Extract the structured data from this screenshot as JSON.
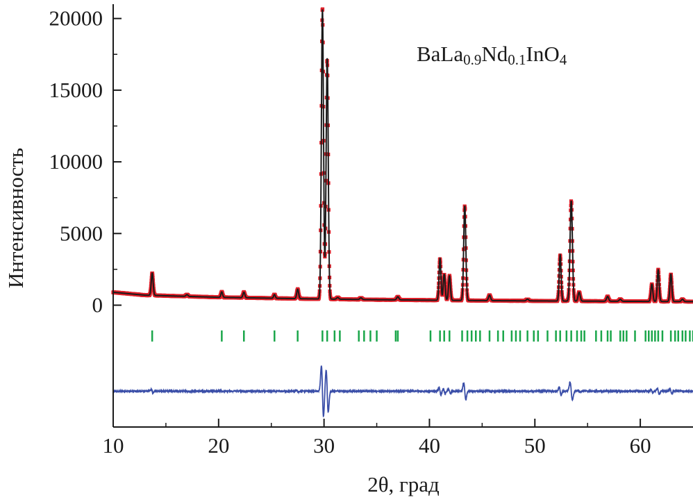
{
  "chart_data": {
    "type": "line",
    "title": "",
    "annotation": {
      "parts": [
        {
          "text": "BaLa",
          "sub": false
        },
        {
          "text": "0.9",
          "sub": true
        },
        {
          "text": "Nd",
          "sub": false
        },
        {
          "text": "0.1",
          "sub": true
        },
        {
          "text": "InO",
          "sub": false
        },
        {
          "text": "4",
          "sub": true
        }
      ]
    },
    "xlabel": "2θ, град",
    "ylabel": "Интенсивность",
    "xlim": [
      10,
      65
    ],
    "ylim": [
      -8500,
      21000
    ],
    "x_ticks": [
      10,
      20,
      30,
      40,
      50,
      60
    ],
    "y_ticks": [
      0,
      5000,
      10000,
      15000,
      20000
    ],
    "x_tick_labels": [
      "10",
      "20",
      "30",
      "40",
      "50",
      "60"
    ],
    "y_tick_labels": [
      "0",
      "5000",
      "10000",
      "15000",
      "20000"
    ],
    "background": {
      "x": [
        10,
        13,
        20,
        28,
        35,
        45,
        55,
        65
      ],
      "y": [
        900,
        700,
        550,
        450,
        380,
        320,
        280,
        250
      ]
    },
    "peaks": [
      {
        "x": 13.7,
        "h": 1550,
        "w": 0.09
      },
      {
        "x": 17.0,
        "h": 120,
        "w": 0.1
      },
      {
        "x": 20.3,
        "h": 380,
        "w": 0.08
      },
      {
        "x": 22.4,
        "h": 380,
        "w": 0.09
      },
      {
        "x": 25.3,
        "h": 260,
        "w": 0.08
      },
      {
        "x": 27.5,
        "h": 650,
        "w": 0.09
      },
      {
        "x": 29.85,
        "h": 20200,
        "w": 0.1
      },
      {
        "x": 30.3,
        "h": 16800,
        "w": 0.1
      },
      {
        "x": 31.3,
        "h": 120,
        "w": 0.1
      },
      {
        "x": 33.5,
        "h": 120,
        "w": 0.1
      },
      {
        "x": 37.0,
        "h": 220,
        "w": 0.1
      },
      {
        "x": 41.0,
        "h": 2900,
        "w": 0.09
      },
      {
        "x": 41.4,
        "h": 1800,
        "w": 0.09
      },
      {
        "x": 41.9,
        "h": 1700,
        "w": 0.09
      },
      {
        "x": 43.35,
        "h": 6600,
        "w": 0.1
      },
      {
        "x": 45.7,
        "h": 380,
        "w": 0.1
      },
      {
        "x": 49.3,
        "h": 120,
        "w": 0.1
      },
      {
        "x": 52.4,
        "h": 3200,
        "w": 0.09
      },
      {
        "x": 53.45,
        "h": 7000,
        "w": 0.11
      },
      {
        "x": 54.2,
        "h": 620,
        "w": 0.1
      },
      {
        "x": 56.9,
        "h": 330,
        "w": 0.1
      },
      {
        "x": 58.1,
        "h": 140,
        "w": 0.1
      },
      {
        "x": 61.1,
        "h": 1200,
        "w": 0.09
      },
      {
        "x": 61.7,
        "h": 2200,
        "w": 0.09
      },
      {
        "x": 62.9,
        "h": 1900,
        "w": 0.09
      },
      {
        "x": 64.0,
        "h": 160,
        "w": 0.1
      }
    ],
    "series": [
      {
        "role": "observed",
        "style": "markers",
        "color": "#e0202a"
      },
      {
        "role": "calculated",
        "style": "line",
        "color": "#1a1a1a"
      },
      {
        "role": "difference",
        "style": "line",
        "color": "#3a4ea8"
      },
      {
        "role": "bragg_positions",
        "style": "ticks",
        "color": "#1aa64a"
      }
    ],
    "difference_offset": -6000,
    "bragg_y": -2150,
    "bragg_positions": [
      13.7,
      20.3,
      22.4,
      25.3,
      27.5,
      29.85,
      30.3,
      31.0,
      31.5,
      33.3,
      33.8,
      34.4,
      35.0,
      36.8,
      37.0,
      40.1,
      41.0,
      41.4,
      41.9,
      43.1,
      43.6,
      44.0,
      44.4,
      44.8,
      45.7,
      46.5,
      47.0,
      47.8,
      48.2,
      48.6,
      49.3,
      49.9,
      50.3,
      51.2,
      52.0,
      52.4,
      53.0,
      53.45,
      54.0,
      54.4,
      54.7,
      55.8,
      56.3,
      56.9,
      57.2,
      58.1,
      58.4,
      58.7,
      59.5,
      60.5,
      60.8,
      61.1,
      61.4,
      61.7,
      62.1,
      62.9,
      63.3,
      63.6,
      64.0,
      64.3,
      64.7,
      65.0
    ],
    "colors": {
      "observed": "#e0202a",
      "calculated": "#1a1a1a",
      "difference": "#3a4ea8",
      "bragg": "#1aa64a",
      "axis": "#1a1a1a"
    }
  }
}
